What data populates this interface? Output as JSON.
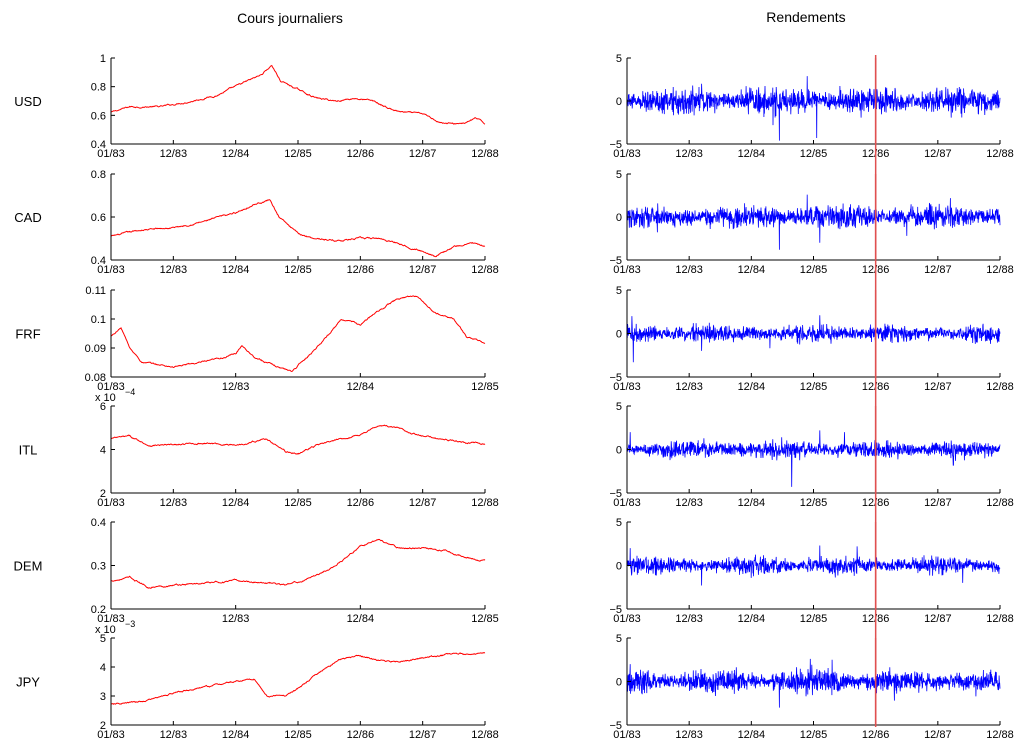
{
  "titles": {
    "left": "Cours journaliers",
    "right": "Rendements"
  },
  "colors": {
    "price": "#ff0000",
    "returns": "#0000ff",
    "marker": "#e05050",
    "axis": "#000000"
  },
  "chart_data": [
    {
      "type": "line",
      "currency": "USD",
      "panel": "price",
      "ylim": [
        0.4,
        1.0
      ],
      "yticks": [
        "0.4",
        "0.6",
        "0.8",
        "1"
      ],
      "yticks_at": [
        0.4,
        0.6,
        0.8,
        1.0
      ],
      "xlim": [
        0,
        6
      ],
      "xticks": [
        "01/83",
        "12/83",
        "12/84",
        "12/85",
        "12/86",
        "12/87",
        "12/88"
      ],
      "exponent_label": "",
      "keypoints": [
        [
          0,
          0.62
        ],
        [
          0.3,
          0.66
        ],
        [
          0.8,
          0.66
        ],
        [
          1.3,
          0.7
        ],
        [
          1.7,
          0.74
        ],
        [
          2.1,
          0.82
        ],
        [
          2.4,
          0.88
        ],
        [
          2.58,
          0.95
        ],
        [
          2.72,
          0.84
        ],
        [
          3.0,
          0.78
        ],
        [
          3.3,
          0.72
        ],
        [
          3.6,
          0.7
        ],
        [
          3.9,
          0.72
        ],
        [
          4.2,
          0.7
        ],
        [
          4.5,
          0.64
        ],
        [
          4.7,
          0.62
        ],
        [
          5.0,
          0.61
        ],
        [
          5.3,
          0.55
        ],
        [
          5.5,
          0.54
        ],
        [
          5.7,
          0.55
        ],
        [
          5.85,
          0.58
        ],
        [
          6.0,
          0.54
        ]
      ]
    },
    {
      "type": "line",
      "currency": "CAD",
      "panel": "price",
      "ylim": [
        0.4,
        0.8
      ],
      "yticks": [
        "0.4",
        "0.6",
        "0.8"
      ],
      "yticks_at": [
        0.4,
        0.6,
        0.8
      ],
      "xlim": [
        0,
        6
      ],
      "xticks": [
        "01/83",
        "12/83",
        "12/84",
        "12/85",
        "12/86",
        "12/87",
        "12/88"
      ],
      "exponent_label": "",
      "keypoints": [
        [
          0,
          0.51
        ],
        [
          0.5,
          0.54
        ],
        [
          1.0,
          0.55
        ],
        [
          1.5,
          0.58
        ],
        [
          2.0,
          0.62
        ],
        [
          2.3,
          0.66
        ],
        [
          2.55,
          0.68
        ],
        [
          2.7,
          0.6
        ],
        [
          3.0,
          0.52
        ],
        [
          3.3,
          0.5
        ],
        [
          3.6,
          0.49
        ],
        [
          4.0,
          0.5
        ],
        [
          4.3,
          0.5
        ],
        [
          4.6,
          0.48
        ],
        [
          5.0,
          0.44
        ],
        [
          5.2,
          0.42
        ],
        [
          5.5,
          0.46
        ],
        [
          5.8,
          0.48
        ],
        [
          6.0,
          0.46
        ]
      ]
    },
    {
      "type": "line",
      "currency": "FRF",
      "panel": "price",
      "ylim": [
        0.08,
        0.11
      ],
      "yticks": [
        "0.08",
        "0.09",
        "0.1",
        "0.11"
      ],
      "yticks_at": [
        0.08,
        0.09,
        0.1,
        0.11
      ],
      "xlim": [
        0,
        3
      ],
      "xticks": [
        "01/83",
        "12/83",
        "12/84",
        "12/85"
      ],
      "exponent_label": "",
      "keypoints": [
        [
          0,
          0.094
        ],
        [
          0.08,
          0.097
        ],
        [
          0.15,
          0.09
        ],
        [
          0.25,
          0.085
        ],
        [
          0.5,
          0.0835
        ],
        [
          0.8,
          0.0855
        ],
        [
          1.0,
          0.088
        ],
        [
          1.05,
          0.091
        ],
        [
          1.15,
          0.087
        ],
        [
          1.3,
          0.084
        ],
        [
          1.45,
          0.082
        ],
        [
          1.6,
          0.088
        ],
        [
          1.75,
          0.095
        ],
        [
          1.85,
          0.1
        ],
        [
          2.0,
          0.098
        ],
        [
          2.15,
          0.103
        ],
        [
          2.3,
          0.107
        ],
        [
          2.45,
          0.108
        ],
        [
          2.6,
          0.102
        ],
        [
          2.75,
          0.1
        ],
        [
          2.85,
          0.094
        ],
        [
          3.0,
          0.0915
        ]
      ]
    },
    {
      "type": "line",
      "currency": "ITL",
      "panel": "price",
      "ylim": [
        2,
        6
      ],
      "yticks": [
        "2",
        "4",
        "6"
      ],
      "yticks_at": [
        2,
        4,
        6
      ],
      "xlim": [
        0,
        6
      ],
      "xticks": [
        "01/83",
        "12/83",
        "12/84",
        "12/85",
        "12/86",
        "12/87",
        "12/88"
      ],
      "exponent_label": "x 10",
      "exponent_power": "−4",
      "keypoints": [
        [
          0,
          4.5
        ],
        [
          0.3,
          4.6
        ],
        [
          0.6,
          4.2
        ],
        [
          1.0,
          4.2
        ],
        [
          1.5,
          4.3
        ],
        [
          2.0,
          4.2
        ],
        [
          2.5,
          4.5
        ],
        [
          2.8,
          3.9
        ],
        [
          3.0,
          3.8
        ],
        [
          3.3,
          4.2
        ],
        [
          3.6,
          4.4
        ],
        [
          4.0,
          4.7
        ],
        [
          4.3,
          5.1
        ],
        [
          4.6,
          5.0
        ],
        [
          5.0,
          4.6
        ],
        [
          5.3,
          4.5
        ],
        [
          5.7,
          4.3
        ],
        [
          6.0,
          4.25
        ]
      ]
    },
    {
      "type": "line",
      "currency": "DEM",
      "panel": "price",
      "ylim": [
        0.2,
        0.4
      ],
      "yticks": [
        "0.2",
        "0.3",
        "0.4"
      ],
      "yticks_at": [
        0.2,
        0.3,
        0.4
      ],
      "xlim": [
        0,
        3
      ],
      "xticks": [
        "01/83",
        "12/83",
        "12/84",
        "12/85"
      ],
      "exponent_label": "",
      "keypoints": [
        [
          0,
          0.265
        ],
        [
          0.15,
          0.272
        ],
        [
          0.3,
          0.25
        ],
        [
          0.5,
          0.255
        ],
        [
          0.8,
          0.26
        ],
        [
          1.0,
          0.265
        ],
        [
          1.2,
          0.262
        ],
        [
          1.4,
          0.255
        ],
        [
          1.6,
          0.27
        ],
        [
          1.8,
          0.3
        ],
        [
          2.0,
          0.345
        ],
        [
          2.15,
          0.36
        ],
        [
          2.3,
          0.34
        ],
        [
          2.5,
          0.34
        ],
        [
          2.7,
          0.335
        ],
        [
          2.85,
          0.318
        ],
        [
          3.0,
          0.31
        ]
      ]
    },
    {
      "type": "line",
      "currency": "JPY",
      "panel": "price",
      "ylim": [
        2,
        5
      ],
      "yticks": [
        "2",
        "3",
        "4",
        "5"
      ],
      "yticks_at": [
        2,
        3,
        4,
        5
      ],
      "xlim": [
        0,
        6
      ],
      "xticks": [
        "01/83",
        "12/83",
        "12/84",
        "12/85",
        "12/86",
        "12/87",
        "12/88"
      ],
      "exponent_label": "x 10",
      "exponent_power": "−3",
      "keypoints": [
        [
          0,
          2.7
        ],
        [
          0.5,
          2.8
        ],
        [
          1.0,
          3.1
        ],
        [
          1.5,
          3.3
        ],
        [
          2.0,
          3.5
        ],
        [
          2.3,
          3.6
        ],
        [
          2.5,
          3.0
        ],
        [
          2.8,
          3.0
        ],
        [
          3.1,
          3.4
        ],
        [
          3.4,
          3.9
        ],
        [
          3.7,
          4.3
        ],
        [
          4.0,
          4.4
        ],
        [
          4.3,
          4.2
        ],
        [
          4.6,
          4.2
        ],
        [
          5.0,
          4.3
        ],
        [
          5.3,
          4.4
        ],
        [
          5.6,
          4.45
        ],
        [
          6.0,
          4.45
        ]
      ]
    },
    {
      "type": "line",
      "currency": "USD",
      "panel": "returns",
      "ylim": [
        -5,
        5
      ],
      "yticks": [
        "−5",
        "0",
        "5"
      ],
      "yticks_at": [
        -5,
        0,
        5
      ],
      "xlim": [
        0,
        6
      ],
      "xticks": [
        "01/83",
        "12/83",
        "12/84",
        "12/85",
        "12/86",
        "12/87",
        "12/88"
      ],
      "marker_at": "12/86",
      "amplitude": 0.9,
      "spikes": [
        [
          2.45,
          -4.6
        ],
        [
          2.35,
          -2.8
        ],
        [
          3.05,
          -4.3
        ],
        [
          2.9,
          2.9
        ],
        [
          1.2,
          2.0
        ]
      ]
    },
    {
      "type": "line",
      "currency": "CAD",
      "panel": "returns",
      "ylim": [
        -5,
        5
      ],
      "yticks": [
        "−5",
        "0",
        "5"
      ],
      "yticks_at": [
        -5,
        0,
        5
      ],
      "xlim": [
        0,
        6
      ],
      "xticks": [
        "01/83",
        "12/83",
        "12/84",
        "12/85",
        "12/86",
        "12/87",
        "12/88"
      ],
      "marker_at": "12/86",
      "amplitude": 0.8,
      "spikes": [
        [
          2.45,
          -3.8
        ],
        [
          3.1,
          -3.0
        ],
        [
          2.9,
          2.6
        ],
        [
          4.5,
          -2.2
        ],
        [
          5.2,
          2.2
        ]
      ]
    },
    {
      "type": "line",
      "currency": "FRF",
      "panel": "returns",
      "ylim": [
        -5,
        5
      ],
      "yticks": [
        "−5",
        "0",
        "5"
      ],
      "yticks_at": [
        -5,
        0,
        5
      ],
      "xlim": [
        0,
        6
      ],
      "xticks": [
        "01/83",
        "12/83",
        "12/84",
        "12/85",
        "12/86",
        "12/87",
        "12/88"
      ],
      "marker_at": "12/86",
      "amplitude": 0.6,
      "spikes": [
        [
          0.1,
          -3.3
        ],
        [
          0.08,
          2.0
        ],
        [
          2.3,
          -1.7
        ],
        [
          1.2,
          -2.0
        ],
        [
          3.1,
          2.1
        ]
      ]
    },
    {
      "type": "line",
      "currency": "ITL",
      "panel": "returns",
      "ylim": [
        -5,
        5
      ],
      "yticks": [
        "−5",
        "0",
        "5"
      ],
      "yticks_at": [
        -5,
        0,
        5
      ],
      "xlim": [
        0,
        6
      ],
      "xticks": [
        "01/83",
        "12/83",
        "12/84",
        "12/85",
        "12/86",
        "12/87",
        "12/88"
      ],
      "marker_at": "12/86",
      "amplitude": 0.6,
      "spikes": [
        [
          2.65,
          -4.3
        ],
        [
          0.05,
          2.0
        ],
        [
          3.1,
          2.2
        ],
        [
          3.5,
          2.0
        ],
        [
          5.25,
          -1.8
        ]
      ]
    },
    {
      "type": "line",
      "currency": "DEM",
      "panel": "returns",
      "ylim": [
        -5,
        5
      ],
      "yticks": [
        "−5",
        "0",
        "5"
      ],
      "yticks_at": [
        -5,
        0,
        5
      ],
      "xlim": [
        0,
        6
      ],
      "xticks": [
        "01/83",
        "12/83",
        "12/84",
        "12/85",
        "12/86",
        "12/87",
        "12/88"
      ],
      "marker_at": "12/86",
      "amplitude": 0.6,
      "spikes": [
        [
          0.05,
          2.0
        ],
        [
          1.2,
          -2.3
        ],
        [
          3.1,
          2.3
        ],
        [
          3.7,
          2.2
        ],
        [
          5.4,
          -2.0
        ]
      ]
    },
    {
      "type": "line",
      "currency": "JPY",
      "panel": "returns",
      "ylim": [
        -5,
        5
      ],
      "yticks": [
        "−5",
        "0",
        "5"
      ],
      "yticks_at": [
        -5,
        0,
        5
      ],
      "xlim": [
        0,
        6
      ],
      "xticks": [
        "01/83",
        "12/83",
        "12/84",
        "12/85",
        "12/86",
        "12/87",
        "12/88"
      ],
      "marker_at": "12/86",
      "amplitude": 0.8,
      "spikes": [
        [
          2.45,
          -3.0
        ],
        [
          0.05,
          2.0
        ],
        [
          2.95,
          2.6
        ],
        [
          3.3,
          2.5
        ],
        [
          4.3,
          -2.2
        ]
      ]
    }
  ]
}
